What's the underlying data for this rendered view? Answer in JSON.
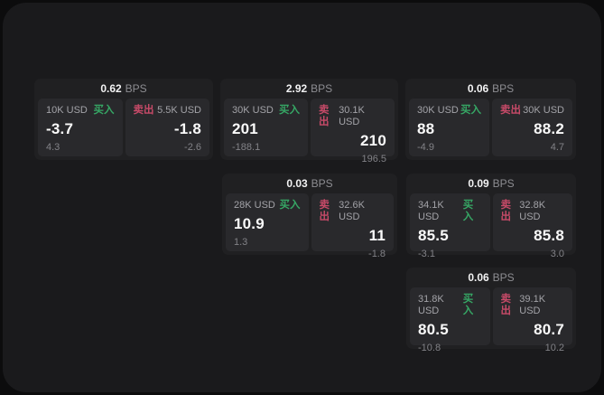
{
  "colors": {
    "buy_green": "#36a765",
    "sell_red": "#c74a68",
    "panel_background": "#29292c",
    "card_background": "#202022",
    "app_background": "#1a1a1c"
  },
  "cards": [
    {
      "bps": "0.62",
      "bps_unit": "BPS",
      "buy": {
        "amount": "10K USD",
        "side": "买入",
        "price": "-3.7",
        "change": "4.3"
      },
      "sell": {
        "side": "卖出",
        "amount": "5.5K USD",
        "price": "-1.8",
        "change": "-2.6"
      }
    },
    {
      "bps": "2.92",
      "bps_unit": "BPS",
      "buy": {
        "amount": "30K USD",
        "side": "买入",
        "price": "201",
        "change": "-188.1"
      },
      "sell": {
        "side": "卖出",
        "amount": "30.1K USD",
        "price": "210",
        "change": "196.5"
      }
    },
    {
      "bps": "0.06",
      "bps_unit": "BPS",
      "buy": {
        "amount": "30K USD",
        "side": "买入",
        "price": "88",
        "change": "-4.9"
      },
      "sell": {
        "side": "卖出",
        "amount": "30K USD",
        "price": "88.2",
        "change": "4.7"
      }
    },
    {
      "bps": "0.03",
      "bps_unit": "BPS",
      "buy": {
        "amount": "28K USD",
        "side": "买入",
        "price": "10.9",
        "change": "1.3"
      },
      "sell": {
        "side": "卖出",
        "amount": "32.6K USD",
        "price": "11",
        "change": "-1.8"
      }
    },
    {
      "bps": "0.09",
      "bps_unit": "BPS",
      "buy": {
        "amount": "34.1K USD",
        "side": "买入",
        "price": "85.5",
        "change": "-3.1"
      },
      "sell": {
        "side": "卖出",
        "amount": "32.8K USD",
        "price": "85.8",
        "change": "3.0"
      }
    },
    {
      "bps": "0.06",
      "bps_unit": "BPS",
      "buy": {
        "amount": "31.8K USD",
        "side": "买入",
        "price": "80.5",
        "change": "-10.8"
      },
      "sell": {
        "side": "卖出",
        "amount": "39.1K USD",
        "price": "80.7",
        "change": "10.2"
      }
    }
  ]
}
